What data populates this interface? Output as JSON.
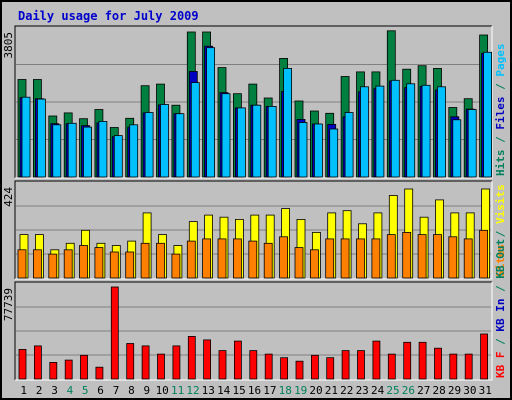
{
  "chart_data": {
    "type": "bar",
    "title": "Daily usage for July 2009",
    "categories": [
      "1",
      "2",
      "3",
      "4",
      "5",
      "6",
      "7",
      "8",
      "9",
      "10",
      "11",
      "12",
      "13",
      "14",
      "15",
      "16",
      "17",
      "18",
      "19",
      "20",
      "21",
      "22",
      "23",
      "24",
      "25",
      "26",
      "27",
      "28",
      "29",
      "30",
      "31"
    ],
    "weekend_days": [
      "4",
      "5",
      "11",
      "12",
      "18",
      "19",
      "25",
      "26"
    ],
    "panels": [
      {
        "id": "hits-files-pages",
        "max_label": "3805",
        "ylim": [
          0,
          3805
        ],
        "right_labels": [
          {
            "text": "Hits",
            "color": "#00805c"
          },
          {
            "text": " / ",
            "color": "#00805c"
          },
          {
            "text": "Files",
            "color": "#0000c0"
          },
          {
            "text": " / ",
            "color": "#00805c"
          },
          {
            "text": "Pages",
            "color": "#00c0ff"
          }
        ],
        "series": [
          {
            "name": "Hits",
            "color": "#008040",
            "values": [
              2540,
              2540,
              1590,
              1670,
              1520,
              1760,
              1290,
              1530,
              2380,
              2420,
              1870,
              3780,
              3780,
              2850,
              2170,
              2420,
              2060,
              3090,
              1980,
              1720,
              1660,
              2620,
              2740,
              2740,
              3810,
              2810,
              2900,
              2830,
              1810,
              2040,
              3700
            ]
          },
          {
            "name": "Files",
            "color": "#0000c0",
            "values": [
              2070,
              2040,
              1390,
              1390,
              1340,
              1410,
              1050,
              1300,
              1670,
              1880,
              1650,
              2750,
              3410,
              2200,
              1800,
              1870,
              1840,
              2230,
              1500,
              1380,
              1370,
              1570,
              2220,
              2300,
              2500,
              2330,
              2360,
              2270,
              1570,
              1770,
              3220
            ]
          },
          {
            "name": "Pages",
            "color": "#00c0ff",
            "values": [
              2080,
              2030,
              1360,
              1400,
              1300,
              1450,
              1080,
              1360,
              1680,
              1890,
              1650,
              2460,
              3370,
              2170,
              1800,
              1870,
              1840,
              2830,
              1420,
              1380,
              1250,
              1680,
              2350,
              2370,
              2520,
              2430,
              2390,
              2350,
              1490,
              1760,
              3250
            ]
          }
        ]
      },
      {
        "id": "visits-sites",
        "max_label": "424",
        "ylim": [
          0,
          424
        ],
        "right_labels": [
          {
            "text": "Sites",
            "color": "#ff8000"
          },
          {
            "text": " / ",
            "color": "#00805c"
          },
          {
            "text": "Visits",
            "color": "#ffff00"
          }
        ],
        "series": [
          {
            "name": "Visits",
            "color": "#ffff00",
            "values": [
              200,
              200,
              130,
              160,
              220,
              160,
              150,
              170,
              300,
              200,
              150,
              260,
              290,
              280,
              270,
              290,
              290,
              320,
              270,
              210,
              300,
              310,
              250,
              300,
              380,
              410,
              280,
              360,
              300,
              300,
              410
            ]
          },
          {
            "name": "Sites",
            "color": "#ff8000",
            "values": [
              130,
              130,
              110,
              130,
              150,
              140,
              120,
              120,
              160,
              160,
              110,
              170,
              180,
              180,
              180,
              170,
              160,
              190,
              140,
              130,
              180,
              180,
              180,
              180,
              200,
              210,
              200,
              200,
              190,
              180,
              220
            ]
          }
        ]
      },
      {
        "id": "kbytes",
        "max_label": "77739",
        "ylim": [
          0,
          77739
        ],
        "right_labels": [
          {
            "text": "KB F",
            "color": "#ff0000"
          },
          {
            "text": " / ",
            "color": "#00805c"
          },
          {
            "text": "KB In",
            "color": "#0000c0"
          },
          {
            "text": " / ",
            "color": "#00805c"
          },
          {
            "text": "KB Out",
            "color": "#00805c"
          }
        ],
        "series": [
          {
            "name": "KB F",
            "color": "#ff0000",
            "values": [
              25000,
              28000,
              14000,
              16000,
              20000,
              10000,
              77739,
              30000,
              28000,
              21000,
              28000,
              36000,
              33000,
              24000,
              32000,
              24000,
              21000,
              18000,
              15000,
              20000,
              18000,
              24000,
              24000,
              32000,
              21000,
              31000,
              31000,
              26000,
              21000,
              21000,
              38000
            ]
          }
        ]
      }
    ]
  }
}
